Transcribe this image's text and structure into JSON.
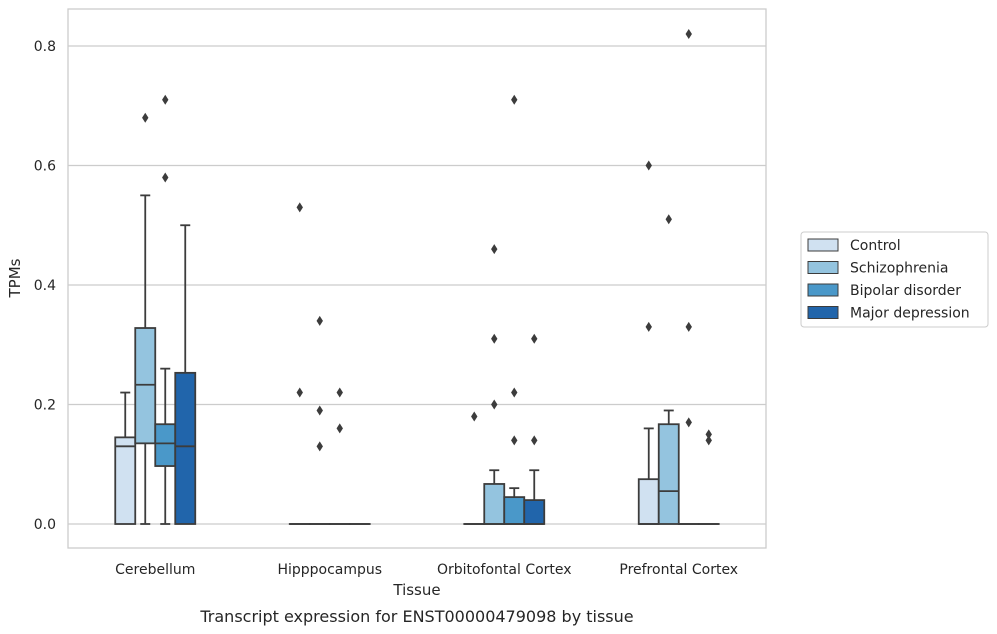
{
  "chart_data": {
    "type": "box",
    "xlabel": "Tissue",
    "ylabel": "TPMs",
    "caption": "Transcript expression for ENST00000479098 by tissue",
    "ylim": [
      -0.04,
      0.865
    ],
    "yticks": [
      0.0,
      0.2,
      0.4,
      0.6,
      0.8
    ],
    "ytick_labels": [
      "0.0",
      "0.2",
      "0.4",
      "0.6",
      "0.8"
    ],
    "grid": "horizontal",
    "legend_position": "right",
    "categories": [
      "Cerebellum",
      "Hipppocampus",
      "Orbitofontal Cortex",
      "Prefrontal Cortex"
    ],
    "series": [
      {
        "name": "Control",
        "color": "#d0e1f1",
        "boxes": [
          {
            "whislo": 0.0,
            "q1": 0.0,
            "med": 0.13,
            "q3": 0.145,
            "whishi": 0.22,
            "fliers": []
          },
          {
            "whislo": 0.0,
            "q1": 0.0,
            "med": 0.0,
            "q3": 0.0,
            "whishi": 0.0,
            "fliers": [
              0.53,
              0.22
            ]
          },
          {
            "whislo": 0.0,
            "q1": 0.0,
            "med": 0.0,
            "q3": 0.0,
            "whishi": 0.0,
            "fliers": [
              0.18
            ]
          },
          {
            "whislo": 0.0,
            "q1": 0.0,
            "med": 0.0,
            "q3": 0.075,
            "whishi": 0.16,
            "fliers": [
              0.6,
              0.33
            ]
          }
        ]
      },
      {
        "name": "Schizophrenia",
        "color": "#94c4df",
        "boxes": [
          {
            "whislo": 0.0,
            "q1": 0.135,
            "med": 0.233,
            "q3": 0.328,
            "whishi": 0.55,
            "fliers": [
              0.68
            ]
          },
          {
            "whislo": 0.0,
            "q1": 0.0,
            "med": 0.0,
            "q3": 0.0,
            "whishi": 0.0,
            "fliers": [
              0.34,
              0.19,
              0.13
            ]
          },
          {
            "whislo": 0.0,
            "q1": 0.0,
            "med": 0.0,
            "q3": 0.067,
            "whishi": 0.09,
            "fliers": [
              0.46,
              0.31,
              0.2
            ]
          },
          {
            "whislo": 0.0,
            "q1": 0.0,
            "med": 0.055,
            "q3": 0.167,
            "whishi": 0.19,
            "fliers": [
              0.51
            ]
          }
        ]
      },
      {
        "name": "Bipolar disorder",
        "color": "#4a98c9",
        "boxes": [
          {
            "whislo": 0.0,
            "q1": 0.097,
            "med": 0.135,
            "q3": 0.167,
            "whishi": 0.26,
            "fliers": [
              0.71,
              0.58
            ]
          },
          {
            "whislo": 0.0,
            "q1": 0.0,
            "med": 0.0,
            "q3": 0.0,
            "whishi": 0.0,
            "fliers": [
              0.22,
              0.16
            ]
          },
          {
            "whislo": 0.0,
            "q1": 0.0,
            "med": 0.0,
            "q3": 0.045,
            "whishi": 0.06,
            "fliers": [
              0.71,
              0.22,
              0.14
            ]
          },
          {
            "whislo": 0.0,
            "q1": 0.0,
            "med": 0.0,
            "q3": 0.0,
            "whishi": 0.0,
            "fliers": [
              0.82,
              0.33,
              0.17
            ]
          }
        ]
      },
      {
        "name": "Major depression",
        "color": "#2165ab",
        "boxes": [
          {
            "whislo": 0.0,
            "q1": 0.0,
            "med": 0.13,
            "q3": 0.253,
            "whishi": 0.5,
            "fliers": []
          },
          {
            "whislo": 0.0,
            "q1": 0.0,
            "med": 0.0,
            "q3": 0.0,
            "whishi": 0.0,
            "fliers": []
          },
          {
            "whislo": 0.0,
            "q1": 0.0,
            "med": 0.0,
            "q3": 0.04,
            "whishi": 0.09,
            "fliers": [
              0.31,
              0.14
            ]
          },
          {
            "whislo": 0.0,
            "q1": 0.0,
            "med": 0.0,
            "q3": 0.0,
            "whishi": 0.0,
            "fliers": [
              0.15,
              0.14
            ]
          }
        ]
      }
    ]
  }
}
